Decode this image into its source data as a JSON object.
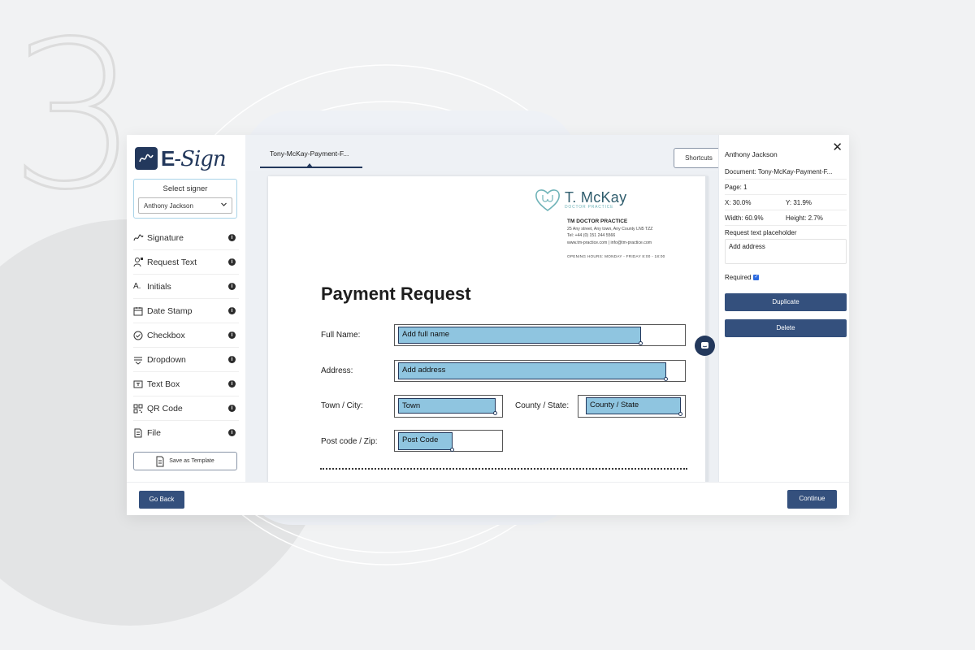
{
  "step_number": "3",
  "app": {
    "logo_text_e": "E",
    "logo_text_rest": "-Sign",
    "signer": {
      "title": "Select signer",
      "selected": "Anthony Jackson"
    },
    "tools": [
      {
        "label": "Signature",
        "icon": "signature-icon"
      },
      {
        "label": "Request Text",
        "icon": "request-text-icon"
      },
      {
        "label": "Initials",
        "icon": "initials-icon"
      },
      {
        "label": "Date Stamp",
        "icon": "calendar-icon"
      },
      {
        "label": "Checkbox",
        "icon": "checkbox-icon"
      },
      {
        "label": "Dropdown",
        "icon": "dropdown-icon"
      },
      {
        "label": "Text Box",
        "icon": "textbox-icon"
      },
      {
        "label": "QR Code",
        "icon": "qr-code-icon"
      },
      {
        "label": "File",
        "icon": "file-icon"
      }
    ],
    "save_template": "Save as Template",
    "tab": {
      "label": "Tony-McKay-Payment-F..."
    },
    "shortcuts": "Shortcuts",
    "document": {
      "practice_name": "T. McKay",
      "practice_sub": "DOCTOR PRACTICE",
      "info_title": "TM DOCTOR PRACTICE",
      "info_address": "25 Any street, Any town, Any County LN5 TZZ",
      "info_tel": "Tel: +44 (0) 151 244 5566",
      "info_web": "www.tm-practice.com  |  info@tm-practice.com",
      "info_hours": "OPENING HOURS:   MONDAY - FRIDAY 8:00 - 18:00",
      "heading": "Payment Request",
      "labels": {
        "full_name": "Full Name:",
        "address": "Address:",
        "town": "Town / City:",
        "county": "County / State:",
        "postcode": "Post code / Zip:"
      },
      "fields": {
        "full_name": "Add full name",
        "address": "Add address",
        "town": "Town",
        "county": "County / State",
        "postcode": "Post Code"
      }
    },
    "panel": {
      "signer_name": "Anthony Jackson",
      "document": "Document: Tony-McKay-Payment-F...",
      "page": "Page: 1",
      "x": "X: 30.0%",
      "y": "Y: 31.9%",
      "width": "Width: 60.9%",
      "height": "Height: 2.7%",
      "placeholder_label": "Request text placeholder",
      "placeholder_value": "Add address",
      "required_label": "Required",
      "required_checked": true,
      "duplicate": "Duplicate",
      "delete": "Delete"
    },
    "footer": {
      "go_back": "Go Back",
      "continue": "Continue"
    },
    "colors": {
      "brand_navy": "#23385c",
      "button_navy": "#34507d",
      "field_fill": "#8fc5e0",
      "teal_logo": "#6fb3b8"
    }
  }
}
